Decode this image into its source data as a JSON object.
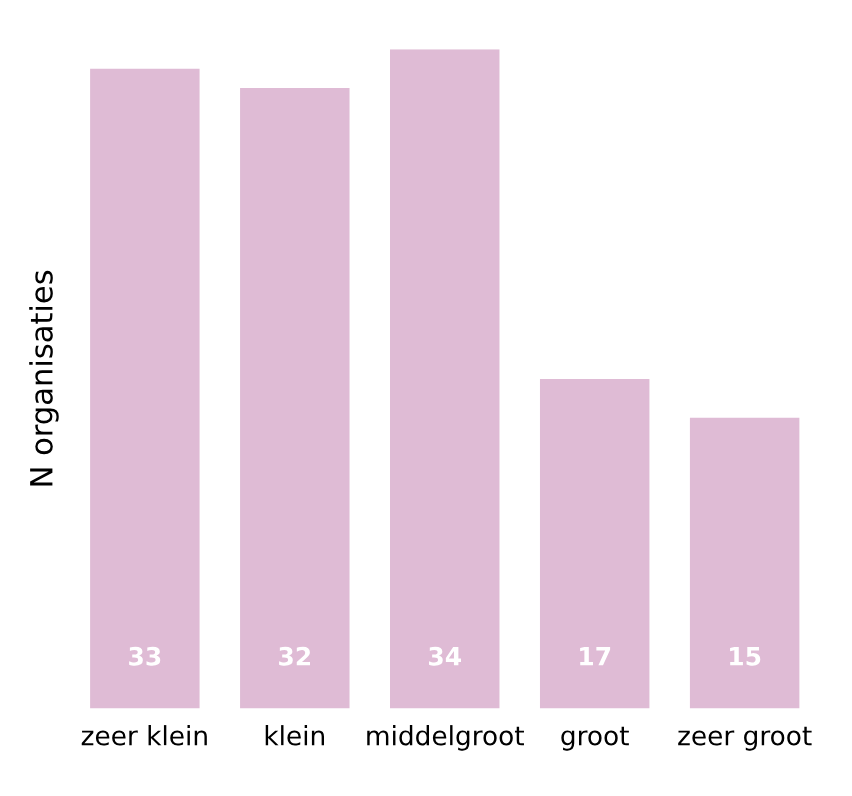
{
  "chart_data": {
    "type": "bar",
    "ylabel": "N organisaties",
    "categories": [
      "zeer klein",
      "klein",
      "middelgroot",
      "groot",
      "zeer groot"
    ],
    "values": [
      33,
      32,
      34,
      17,
      15
    ],
    "color": "#dfbbd5",
    "data_labels": true,
    "grid": false,
    "legend": false
  }
}
